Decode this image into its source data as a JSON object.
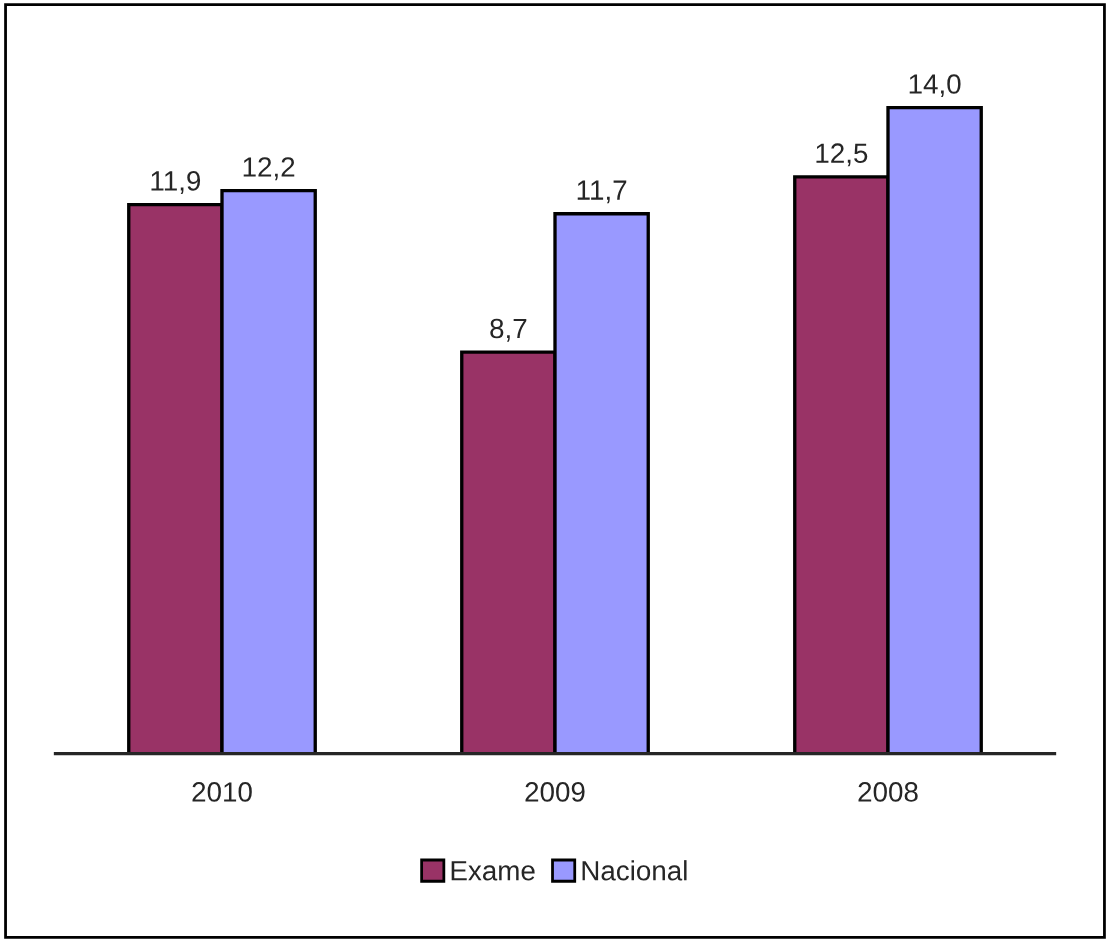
{
  "chart_data": {
    "type": "bar",
    "categories": [
      "2010",
      "2009",
      "2008"
    ],
    "series": [
      {
        "name": "Exame",
        "color": "#993366",
        "values": [
          11.9,
          8.7,
          12.5
        ],
        "value_labels": [
          "11,9",
          "8,7",
          "12,5"
        ]
      },
      {
        "name": "Nacional",
        "color": "#9999ff",
        "values": [
          12.2,
          11.7,
          14.0
        ],
        "value_labels": [
          "12,2",
          "11,7",
          "14,0"
        ]
      }
    ],
    "legend": "bottom"
  }
}
